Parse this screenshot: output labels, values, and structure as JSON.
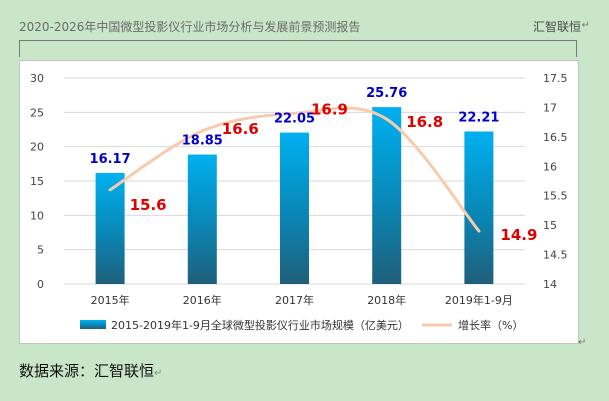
{
  "document": {
    "header_title": "2020-2026年中国微型投影仪行业市场分析与发展前景预测报告",
    "header_brand": "汇智联恒",
    "source_note": "数据来源：汇智联恒"
  },
  "chart_data": {
    "type": "bar",
    "categories": [
      "2015年",
      "2016年",
      "2017年",
      "2018年",
      "2019年1-9月"
    ],
    "series": [
      {
        "name": "2015-2019年1-9月全球微型投影仪行业市场规模（亿美元）",
        "type": "bar",
        "axis": "left",
        "values": [
          16.17,
          18.85,
          22.05,
          25.76,
          22.21
        ],
        "labels": [
          "16.17",
          "18.85",
          "22.05",
          "25.76",
          "22.21"
        ],
        "color_top": "#00b0f0",
        "color_bottom": "#1f5f7a"
      },
      {
        "name": "增长率（%）",
        "type": "line",
        "axis": "right",
        "values": [
          15.6,
          16.6,
          16.9,
          16.8,
          14.9
        ],
        "labels": [
          "15.6",
          "16.6",
          "16.9",
          "16.8",
          "14.9"
        ],
        "color": "#f8cbad"
      }
    ],
    "y_left": {
      "min": 0,
      "max": 30,
      "ticks": [
        "0",
        "5",
        "10",
        "15",
        "20",
        "25",
        "30"
      ]
    },
    "y_right": {
      "min": 14,
      "max": 17.5,
      "ticks": [
        "14",
        "14.5",
        "15",
        "15.5",
        "16",
        "16.5",
        "17",
        "17.5"
      ]
    },
    "grid": "horizontal",
    "legend_position": "bottom",
    "bar_label_color": "#0000cc",
    "line_label_color": "#e00000"
  }
}
